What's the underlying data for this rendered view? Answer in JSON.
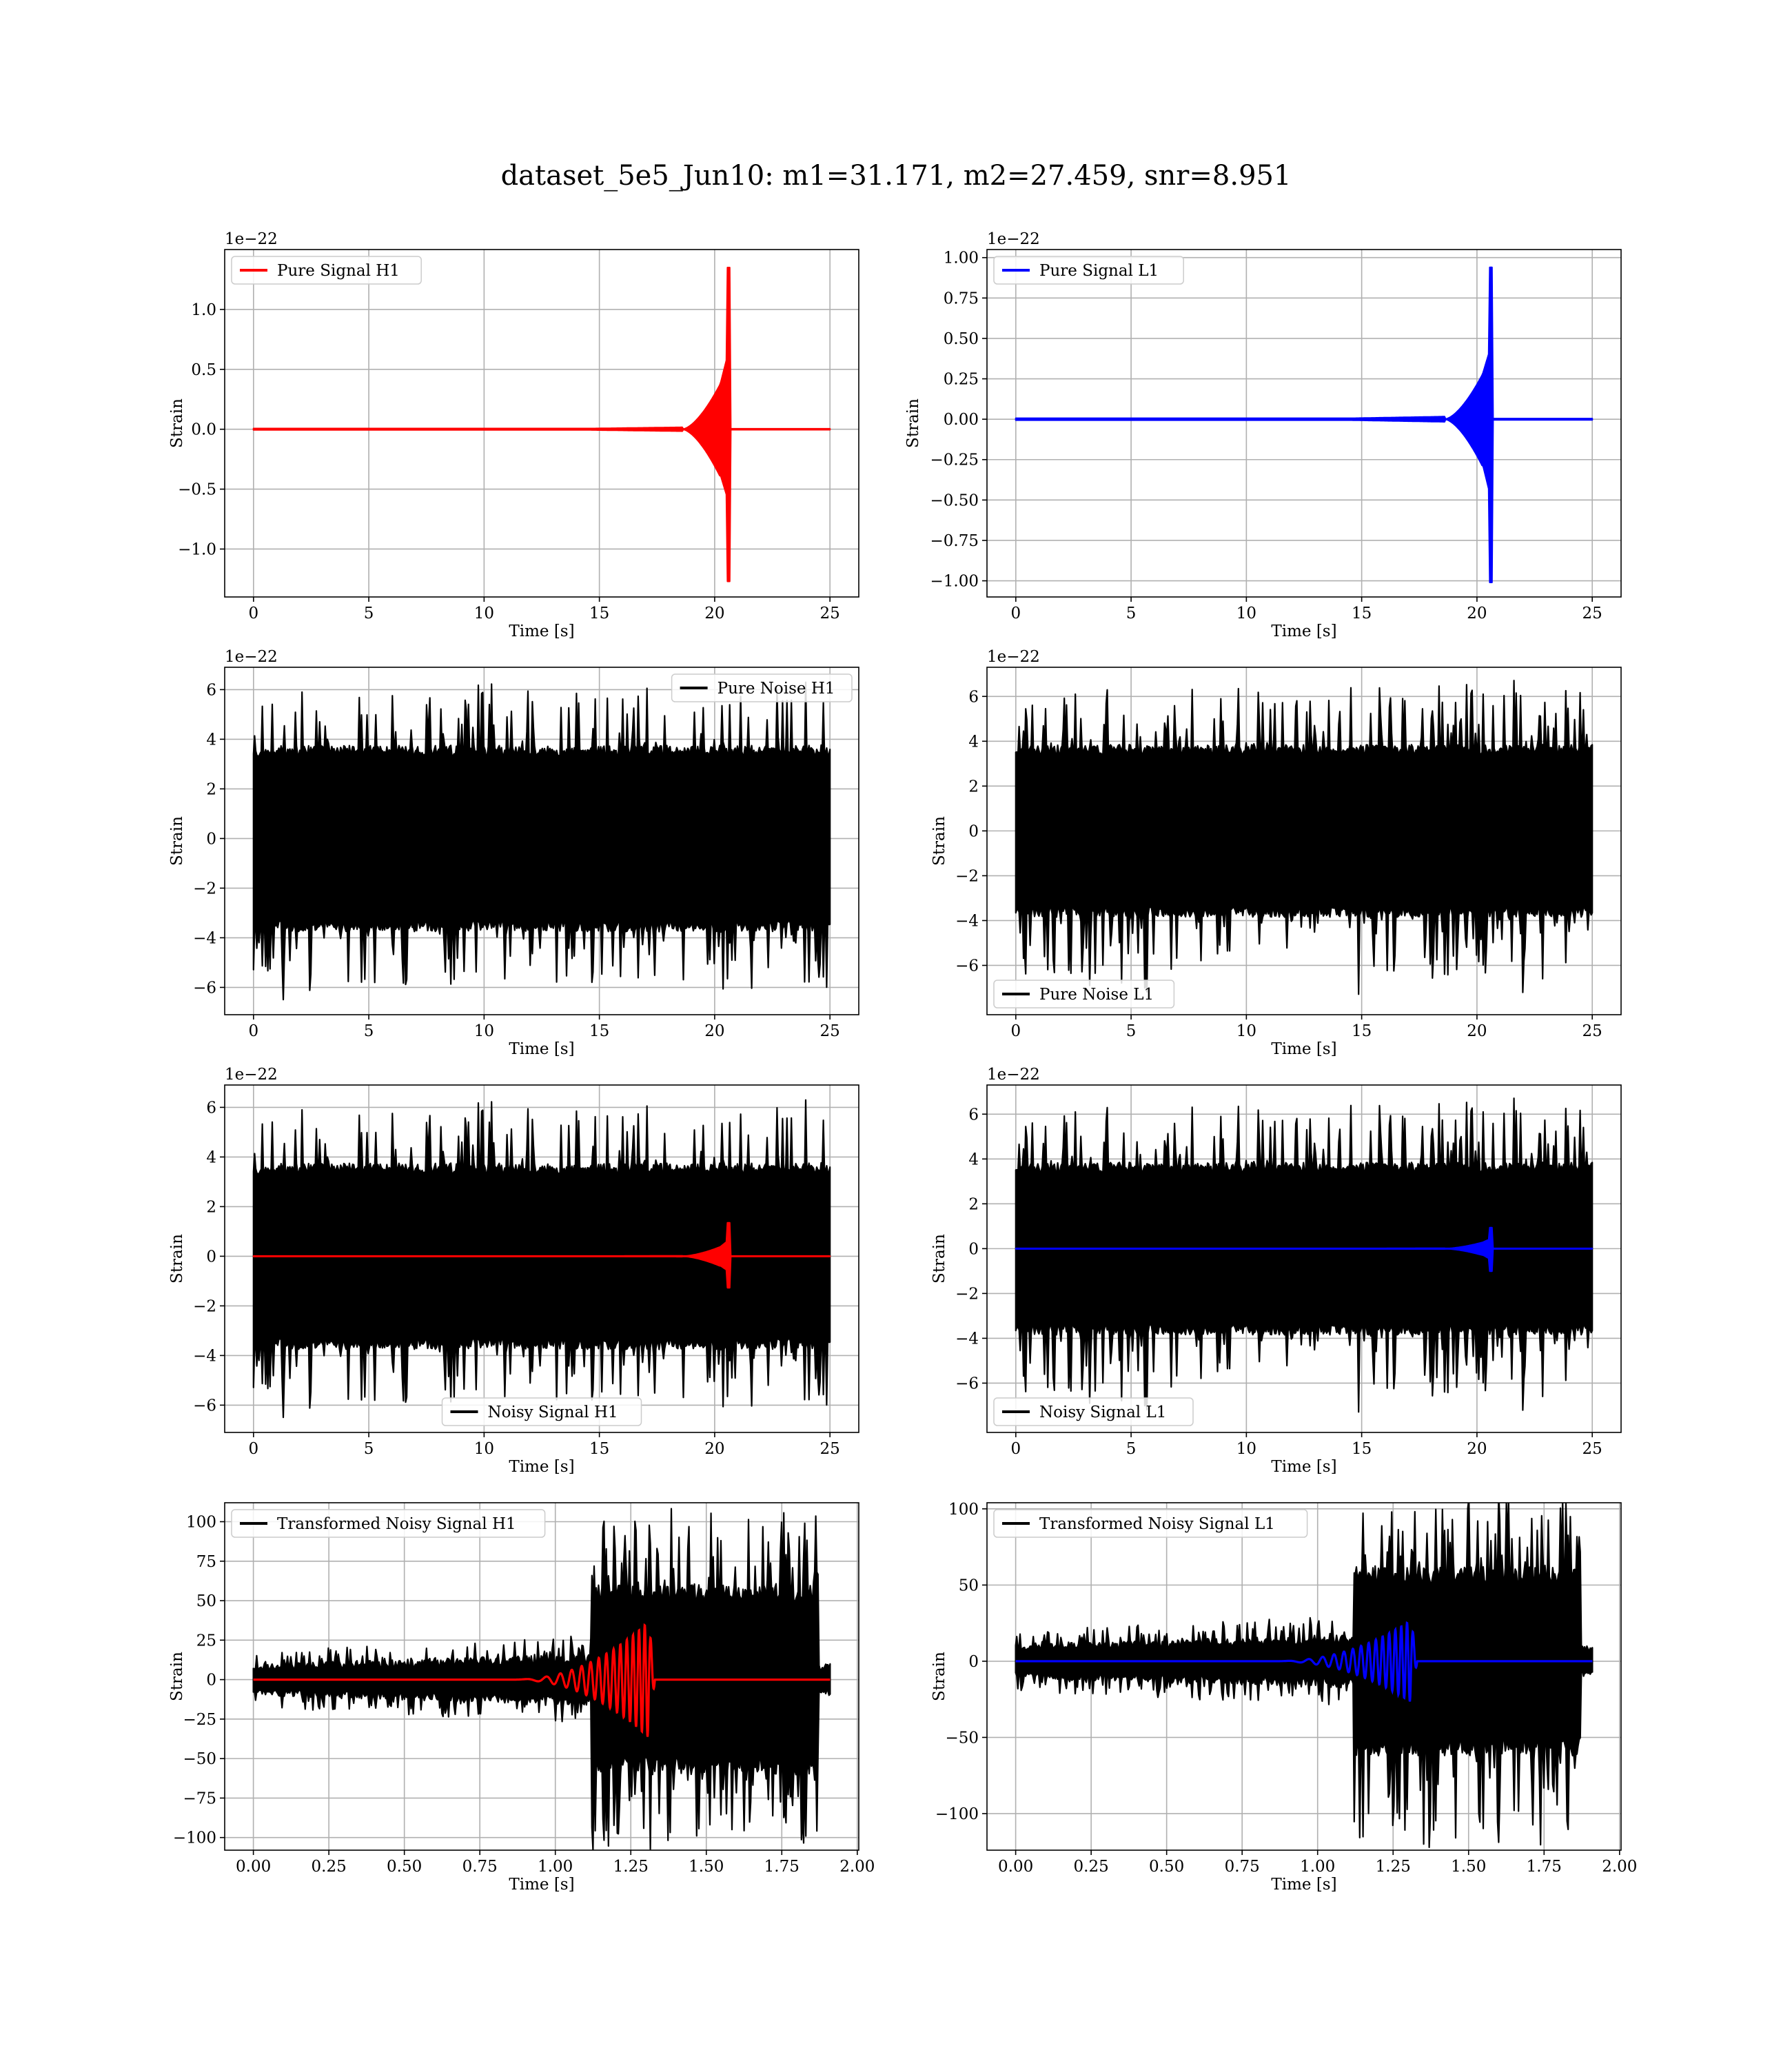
{
  "figure": {
    "title": "dataset_5e5_Jun10: m1=31.171, m2=27.459, snr=8.951"
  },
  "colors": {
    "h1": "#ff0000",
    "l1": "#0000ff",
    "noise": "#000000",
    "grid": "#b0b0b0"
  },
  "chart_data": [
    {
      "id": "pure-signal-h1",
      "type": "line",
      "xlabel": "Time [s]",
      "ylabel": "Strain",
      "offset_text": "1e−22",
      "xlim": [
        -1.25,
        26.25
      ],
      "ylim": [
        -1.4,
        1.5
      ],
      "xticks": [
        0,
        5,
        10,
        15,
        20,
        25
      ],
      "xtick_labels": [
        "0",
        "5",
        "10",
        "15",
        "20",
        "25"
      ],
      "yticks": [
        -1.0,
        -0.5,
        0.0,
        0.5,
        1.0
      ],
      "ytick_labels": [
        "−1.0",
        "−0.5",
        "0.0",
        "0.5",
        "1.0"
      ],
      "legend": {
        "position": "upper-left",
        "entries": [
          {
            "label": "Pure Signal H1",
            "color": "#ff0000"
          }
        ]
      },
      "series": [
        {
          "name": "Pure Signal H1",
          "color": "#ff0000",
          "kind": "chirp",
          "t_start": 0,
          "t_end": 25,
          "t_merger": 20.6,
          "peak_pos": 1.35,
          "peak_neg": -1.27,
          "plateau": 0.38,
          "rise_start": 18.6
        }
      ]
    },
    {
      "id": "pure-signal-l1",
      "type": "line",
      "xlabel": "Time [s]",
      "ylabel": "Strain",
      "offset_text": "1e−22",
      "xlim": [
        -1.25,
        26.25
      ],
      "ylim": [
        -1.1,
        1.05
      ],
      "xticks": [
        0,
        5,
        10,
        15,
        20,
        25
      ],
      "xtick_labels": [
        "0",
        "5",
        "10",
        "15",
        "20",
        "25"
      ],
      "yticks": [
        -1.0,
        -0.75,
        -0.5,
        -0.25,
        0.0,
        0.25,
        0.5,
        0.75,
        1.0
      ],
      "ytick_labels": [
        "−1.00",
        "−0.75",
        "−0.50",
        "−0.25",
        "0.00",
        "0.25",
        "0.50",
        "0.75",
        "1.00"
      ],
      "legend": {
        "position": "upper-left",
        "entries": [
          {
            "label": "Pure Signal L1",
            "color": "#0000ff"
          }
        ]
      },
      "series": [
        {
          "name": "Pure Signal L1",
          "color": "#0000ff",
          "kind": "chirp",
          "t_start": 0,
          "t_end": 25,
          "t_merger": 20.6,
          "peak_pos": 0.94,
          "peak_neg": -1.01,
          "plateau": 0.28,
          "rise_start": 18.6
        }
      ]
    },
    {
      "id": "pure-noise-h1",
      "type": "line",
      "xlabel": "Time [s]",
      "ylabel": "Strain",
      "offset_text": "1e−22",
      "xlim": [
        -1.25,
        26.25
      ],
      "ylim": [
        -7.1,
        6.9
      ],
      "xticks": [
        0,
        5,
        10,
        15,
        20,
        25
      ],
      "xtick_labels": [
        "0",
        "5",
        "10",
        "15",
        "20",
        "25"
      ],
      "yticks": [
        -6,
        -4,
        -2,
        0,
        2,
        4,
        6
      ],
      "ytick_labels": [
        "−6",
        "−4",
        "−2",
        "0",
        "2",
        "4",
        "6"
      ],
      "legend": {
        "position": "upper-right",
        "entries": [
          {
            "label": "Pure Noise H1",
            "color": "#000000"
          }
        ]
      },
      "series": [
        {
          "name": "Pure Noise H1",
          "color": "#000000",
          "kind": "noise",
          "t_start": 0,
          "t_end": 25,
          "band": 3.3,
          "max": 6.3,
          "min": -6.5,
          "seed": 11
        }
      ]
    },
    {
      "id": "pure-noise-l1",
      "type": "line",
      "xlabel": "Time [s]",
      "ylabel": "Strain",
      "offset_text": "1e−22",
      "xlim": [
        -1.25,
        26.25
      ],
      "ylim": [
        -8.2,
        7.3
      ],
      "xticks": [
        0,
        5,
        10,
        15,
        20,
        25
      ],
      "xtick_labels": [
        "0",
        "5",
        "10",
        "15",
        "20",
        "25"
      ],
      "yticks": [
        -6,
        -4,
        -2,
        0,
        2,
        4,
        6
      ],
      "ytick_labels": [
        "−6",
        "−4",
        "−2",
        "0",
        "2",
        "4",
        "6"
      ],
      "legend": {
        "position": "lower-left",
        "entries": [
          {
            "label": "Pure Noise L1",
            "color": "#000000"
          }
        ]
      },
      "series": [
        {
          "name": "Pure Noise L1",
          "color": "#000000",
          "kind": "noise",
          "t_start": 0,
          "t_end": 25,
          "band": 3.4,
          "max": 6.8,
          "min": -7.3,
          "seed": 23
        }
      ]
    },
    {
      "id": "noisy-signal-h1",
      "type": "line",
      "xlabel": "Time [s]",
      "ylabel": "Strain",
      "offset_text": "1e−22",
      "xlim": [
        -1.25,
        26.25
      ],
      "ylim": [
        -7.1,
        6.9
      ],
      "xticks": [
        0,
        5,
        10,
        15,
        20,
        25
      ],
      "xtick_labels": [
        "0",
        "5",
        "10",
        "15",
        "20",
        "25"
      ],
      "yticks": [
        -6,
        -4,
        -2,
        0,
        2,
        4,
        6
      ],
      "ytick_labels": [
        "−6",
        "−4",
        "−2",
        "0",
        "2",
        "4",
        "6"
      ],
      "legend": {
        "position": "lower-center",
        "entries": [
          {
            "label": "Noisy Signal H1",
            "color": "#000000"
          }
        ]
      },
      "series": [
        {
          "name": "Noisy Signal H1",
          "color": "#000000",
          "kind": "noise",
          "t_start": 0,
          "t_end": 25,
          "band": 3.3,
          "max": 6.3,
          "min": -6.5,
          "seed": 11
        },
        {
          "color": "#ff0000",
          "kind": "chirp",
          "t_start": 0,
          "t_end": 25,
          "t_merger": 20.6,
          "peak_pos": 1.35,
          "peak_neg": -1.27,
          "plateau": 0.38,
          "rise_start": 18.6
        }
      ]
    },
    {
      "id": "noisy-signal-l1",
      "type": "line",
      "xlabel": "Time [s]",
      "ylabel": "Strain",
      "offset_text": "1e−22",
      "xlim": [
        -1.25,
        26.25
      ],
      "ylim": [
        -8.2,
        7.3
      ],
      "xticks": [
        0,
        5,
        10,
        15,
        20,
        25
      ],
      "xtick_labels": [
        "0",
        "5",
        "10",
        "15",
        "20",
        "25"
      ],
      "yticks": [
        -6,
        -4,
        -2,
        0,
        2,
        4,
        6
      ],
      "ytick_labels": [
        "−6",
        "−4",
        "−2",
        "0",
        "2",
        "4",
        "6"
      ],
      "legend": {
        "position": "lower-left",
        "entries": [
          {
            "label": "Noisy Signal L1",
            "color": "#000000"
          }
        ]
      },
      "series": [
        {
          "name": "Noisy Signal L1",
          "color": "#000000",
          "kind": "noise",
          "t_start": 0,
          "t_end": 25,
          "band": 3.4,
          "max": 6.8,
          "min": -7.3,
          "seed": 23
        },
        {
          "color": "#0000ff",
          "kind": "chirp",
          "t_start": 0,
          "t_end": 25,
          "t_merger": 20.6,
          "peak_pos": 0.94,
          "peak_neg": -1.01,
          "plateau": 0.28,
          "rise_start": 18.6
        }
      ]
    },
    {
      "id": "transformed-noisy-signal-h1",
      "type": "line",
      "xlabel": "Time [s]",
      "ylabel": "Strain",
      "offset_text": "",
      "xlim": [
        -0.095,
        2.005
      ],
      "ylim": [
        -108,
        112
      ],
      "xticks": [
        0.0,
        0.25,
        0.5,
        0.75,
        1.0,
        1.25,
        1.5,
        1.75,
        2.0
      ],
      "xtick_labels": [
        "0.00",
        "0.25",
        "0.50",
        "0.75",
        "1.00",
        "1.25",
        "1.50",
        "1.75",
        "2.00"
      ],
      "yticks": [
        -100,
        -75,
        -50,
        -25,
        0,
        25,
        50,
        75,
        100
      ],
      "ytick_labels": [
        "−100",
        "−75",
        "−50",
        "−25",
        "0",
        "25",
        "50",
        "75",
        "100"
      ],
      "legend": {
        "position": "upper-left",
        "entries": [
          {
            "label": "Transformed Noisy Signal H1",
            "color": "#000000"
          }
        ]
      },
      "series": [
        {
          "name": "Transformed Noisy Signal H1",
          "color": "#000000",
          "kind": "tnoise",
          "t_start": 0,
          "t_end": 1.91,
          "t_jump": 1.12,
          "t_cut": 1.87,
          "lo_band": 6,
          "lo_max": 18,
          "mid_band": 10,
          "mid_max": 28,
          "hi_band": 48,
          "hi_max": 102,
          "hi_min": -100,
          "seed": 37
        },
        {
          "color": "#ff0000",
          "kind": "tchirp",
          "t_start": 0,
          "t_end": 1.91,
          "t_merger": 1.31,
          "peak": 37,
          "rise_start": 0.85,
          "cycles": 14
        }
      ]
    },
    {
      "id": "transformed-noisy-signal-l1",
      "type": "line",
      "xlabel": "Time [s]",
      "ylabel": "Strain",
      "offset_text": "",
      "xlim": [
        -0.095,
        2.005
      ],
      "ylim": [
        -124,
        104
      ],
      "xticks": [
        0.0,
        0.25,
        0.5,
        0.75,
        1.0,
        1.25,
        1.5,
        1.75,
        2.0
      ],
      "xtick_labels": [
        "0.00",
        "0.25",
        "0.50",
        "0.75",
        "1.00",
        "1.25",
        "1.50",
        "1.75",
        "2.00"
      ],
      "yticks": [
        -100,
        -50,
        0,
        50,
        100
      ],
      "ytick_labels": [
        "−100",
        "−50",
        "0",
        "50",
        "100"
      ],
      "legend": {
        "position": "upper-left",
        "entries": [
          {
            "label": "Transformed Noisy Signal L1",
            "color": "#000000"
          }
        ]
      },
      "series": [
        {
          "name": "Transformed Noisy Signal L1",
          "color": "#000000",
          "kind": "tnoise",
          "t_start": 0,
          "t_end": 1.91,
          "t_jump": 1.12,
          "t_cut": 1.87,
          "lo_band": 7,
          "lo_max": 20,
          "mid_band": 11,
          "mid_max": 30,
          "hi_band": 50,
          "hi_max": 100,
          "hi_min": -113,
          "seed": 53
        },
        {
          "color": "#0000ff",
          "kind": "tchirp",
          "t_start": 0,
          "t_end": 1.91,
          "t_merger": 1.31,
          "peak": 27,
          "rise_start": 0.85,
          "cycles": 14
        }
      ]
    }
  ]
}
